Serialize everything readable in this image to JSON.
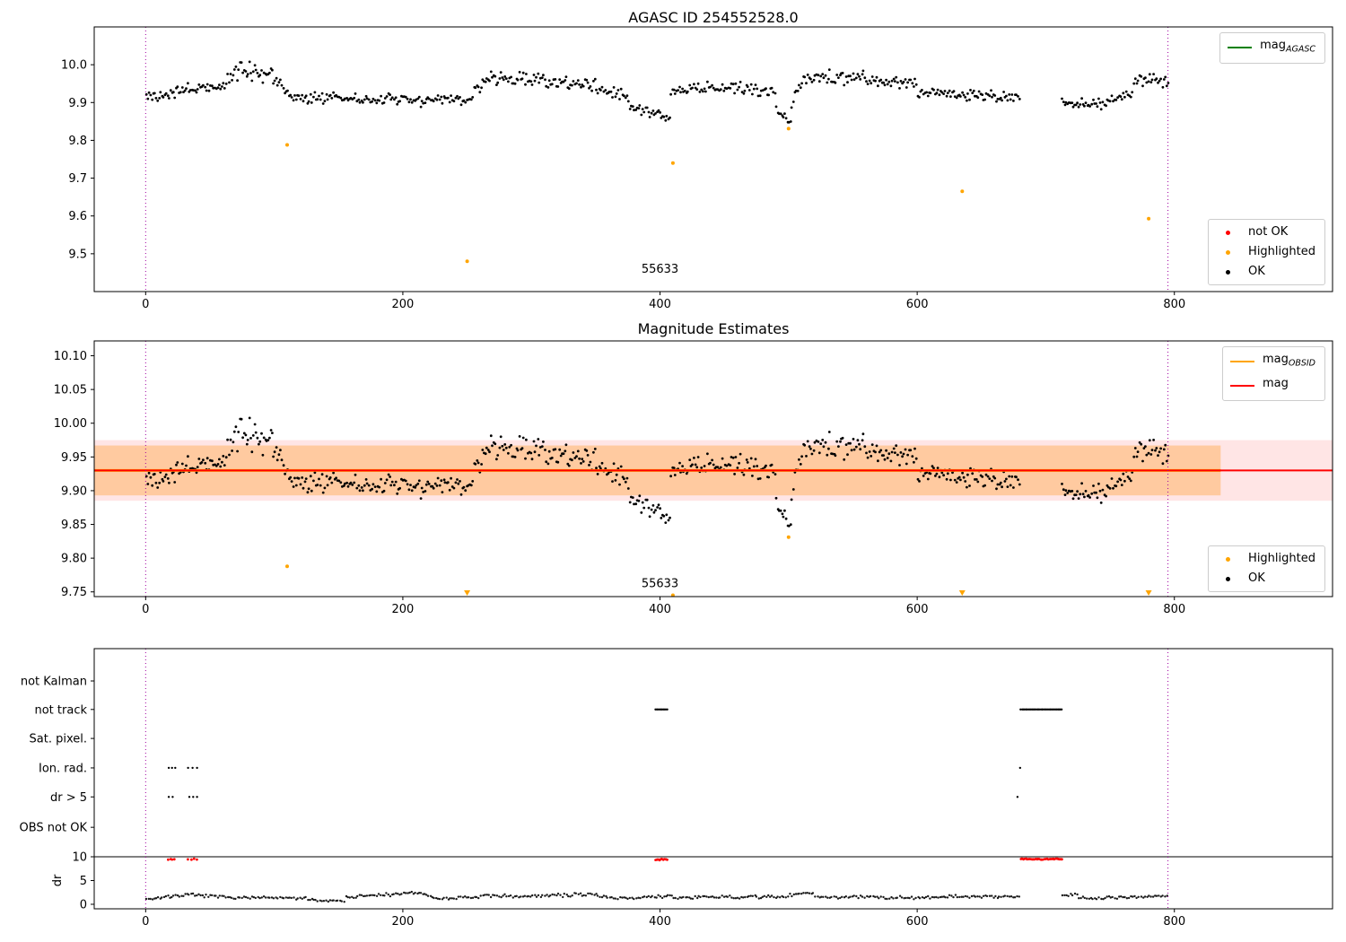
{
  "colors": {
    "ok": "#000000",
    "highlighted": "#ffa500",
    "not_ok": "#ff0000",
    "mag_line": "#ff0000",
    "mag_obsid_line": "#ffa500",
    "mag_agasc_line": "#008000",
    "obsid_boundary": "#a000a0",
    "band_inner": "rgba(255,140,0,0.30)",
    "band_outer": "rgba(255,0,0,0.10)"
  },
  "legends": {
    "top_mag": {
      "items": [
        {
          "type": "line",
          "color": "#008000",
          "main": "mag",
          "sub": "AGASC"
        }
      ]
    },
    "top_status": {
      "items": [
        {
          "type": "dot",
          "color": "#ff0000",
          "label": "not OK"
        },
        {
          "type": "dot",
          "color": "#ffa500",
          "label": "Highlighted"
        },
        {
          "type": "dot",
          "color": "#000000",
          "label": "OK"
        }
      ]
    },
    "mid_mag": {
      "items": [
        {
          "type": "line",
          "color": "#ffa500",
          "main": "mag",
          "sub": "OBSID"
        },
        {
          "type": "line",
          "color": "#ff0000",
          "main": "mag",
          "sub": ""
        }
      ]
    },
    "mid_status": {
      "items": [
        {
          "type": "dot",
          "color": "#ffa500",
          "label": "Highlighted"
        },
        {
          "type": "dot",
          "color": "#000000",
          "label": "OK"
        }
      ]
    }
  },
  "chart_data": [
    {
      "id": "top",
      "type": "scatter",
      "title": "AGASC ID 254552528.0",
      "xlim": [
        -40,
        923
      ],
      "ylim": [
        9.4,
        10.1
      ],
      "xticks": [
        {
          "v": 0,
          "label": "0"
        },
        {
          "v": 200,
          "label": "200"
        },
        {
          "v": 400,
          "label": "400"
        },
        {
          "v": 600,
          "label": "600"
        },
        {
          "v": 800,
          "label": "800"
        }
      ],
      "yticks": [
        {
          "v": 9.5,
          "label": "9.5"
        },
        {
          "v": 9.6,
          "label": "9.6"
        },
        {
          "v": 9.7,
          "label": "9.7"
        },
        {
          "v": 9.8,
          "label": "9.8"
        },
        {
          "v": 9.9,
          "label": "9.9"
        },
        {
          "v": 10.0,
          "label": "10.0"
        }
      ],
      "vlines": [
        {
          "x": 0,
          "color": "#a000a0"
        },
        {
          "x": 795,
          "color": "#a000a0"
        }
      ],
      "annotations": [
        {
          "x": 400,
          "y": 9.45,
          "text": "55633"
        }
      ],
      "series": [
        {
          "name": "ok",
          "color": "#000000",
          "r": 1.4,
          "seed": 42,
          "gen": [
            [
              0,
              20,
              18,
              9.915,
              9.925,
              0.02
            ],
            [
              20,
              60,
              36,
              9.925,
              9.945,
              0.022
            ],
            [
              60,
              75,
              14,
              9.95,
              9.99,
              0.025
            ],
            [
              75,
              100,
              24,
              9.985,
              9.975,
              0.03
            ],
            [
              100,
              112,
              11,
              9.96,
              9.915,
              0.02
            ],
            [
              112,
              150,
              34,
              9.91,
              9.915,
              0.018
            ],
            [
              150,
              210,
              52,
              9.91,
              9.905,
              0.018
            ],
            [
              210,
              255,
              40,
              9.905,
              9.91,
              0.018
            ],
            [
              255,
              268,
              12,
              9.93,
              9.965,
              0.02
            ],
            [
              268,
              310,
              38,
              9.965,
              9.96,
              0.022
            ],
            [
              310,
              350,
              36,
              9.955,
              9.945,
              0.025
            ],
            [
              350,
              375,
              22,
              9.93,
              9.915,
              0.02
            ],
            [
              375,
              395,
              18,
              9.895,
              9.865,
              0.018
            ],
            [
              395,
              408,
              12,
              9.87,
              9.86,
              0.015
            ],
            [
              408,
              420,
              11,
              9.925,
              9.935,
              0.015
            ],
            [
              420,
              490,
              60,
              9.94,
              9.935,
              0.02
            ],
            [
              490,
              502,
              11,
              9.88,
              9.845,
              0.018
            ],
            [
              502,
              512,
              9,
              9.9,
              9.96,
              0.02
            ],
            [
              512,
              560,
              42,
              9.97,
              9.965,
              0.025
            ],
            [
              560,
              600,
              36,
              9.96,
              9.95,
              0.022
            ],
            [
              600,
              640,
              36,
              9.93,
              9.92,
              0.02
            ],
            [
              640,
              680,
              36,
              9.92,
              9.915,
              0.018
            ],
            [
              712,
              745,
              30,
              9.9,
              9.895,
              0.015
            ],
            [
              745,
              768,
              20,
              9.9,
              9.92,
              0.018
            ],
            [
              768,
              788,
              18,
              9.95,
              9.97,
              0.02
            ],
            [
              788,
              796,
              7,
              9.96,
              9.95,
              0.018
            ]
          ]
        },
        {
          "name": "highlighted",
          "color": "#ffa500",
          "r": 2,
          "points": [
            [
              110,
              9.788
            ],
            [
              250,
              9.48
            ],
            [
              410,
              9.74
            ],
            [
              500,
              9.831
            ],
            [
              635,
              9.665
            ],
            [
              780,
              9.593
            ]
          ]
        }
      ]
    },
    {
      "id": "mid",
      "type": "scatter",
      "title": "Magnitude Estimates",
      "xlim": [
        -40,
        923
      ],
      "ylim": [
        9.743,
        10.122
      ],
      "xticks": [
        {
          "v": 0,
          "label": "0"
        },
        {
          "v": 200,
          "label": "200"
        },
        {
          "v": 400,
          "label": "400"
        },
        {
          "v": 600,
          "label": "600"
        },
        {
          "v": 800,
          "label": "800"
        }
      ],
      "yticks": [
        {
          "v": 9.75,
          "label": "9.75"
        },
        {
          "v": 9.8,
          "label": "9.80"
        },
        {
          "v": 9.85,
          "label": "9.85"
        },
        {
          "v": 9.9,
          "label": "9.90"
        },
        {
          "v": 9.95,
          "label": "9.95"
        },
        {
          "v": 10.0,
          "label": "10.00"
        },
        {
          "v": 10.05,
          "label": "10.05"
        },
        {
          "v": 10.1,
          "label": "10.10"
        }
      ],
      "vlines": [
        {
          "x": 0,
          "color": "#a000a0"
        },
        {
          "x": 795,
          "color": "#a000a0"
        }
      ],
      "bands": [
        {
          "x0": -40,
          "x1": 923,
          "y0": 9.885,
          "y1": 9.975,
          "color": "rgba(255,0,0,0.10)"
        },
        {
          "x0": -40,
          "x1": 836,
          "y0": 9.893,
          "y1": 9.967,
          "color": "rgba(255,140,0,0.30)"
        }
      ],
      "hlines": [
        {
          "y": 9.93,
          "x0": -40,
          "x1": 836,
          "color": "#ffa500",
          "width": 3
        },
        {
          "y": 9.93,
          "color": "#ff0000",
          "width": 2
        }
      ],
      "annotations": [
        {
          "x": 400,
          "y": 9.757,
          "text": "55633"
        }
      ],
      "series": [
        {
          "name": "ok",
          "color": "#000000",
          "r": 1.4,
          "seed": 42,
          "gen": [
            [
              0,
              20,
              18,
              9.915,
              9.925,
              0.02
            ],
            [
              20,
              60,
              36,
              9.925,
              9.945,
              0.022
            ],
            [
              60,
              75,
              14,
              9.95,
              9.99,
              0.025
            ],
            [
              75,
              100,
              24,
              9.985,
              9.975,
              0.03
            ],
            [
              100,
              112,
              11,
              9.96,
              9.915,
              0.02
            ],
            [
              112,
              150,
              34,
              9.91,
              9.915,
              0.018
            ],
            [
              150,
              210,
              52,
              9.91,
              9.905,
              0.018
            ],
            [
              210,
              255,
              40,
              9.905,
              9.91,
              0.018
            ],
            [
              255,
              268,
              12,
              9.93,
              9.965,
              0.02
            ],
            [
              268,
              310,
              38,
              9.965,
              9.96,
              0.022
            ],
            [
              310,
              350,
              36,
              9.955,
              9.945,
              0.025
            ],
            [
              350,
              375,
              22,
              9.93,
              9.915,
              0.02
            ],
            [
              375,
              395,
              18,
              9.895,
              9.865,
              0.018
            ],
            [
              395,
              408,
              12,
              9.87,
              9.86,
              0.015
            ],
            [
              408,
              420,
              11,
              9.925,
              9.935,
              0.015
            ],
            [
              420,
              490,
              60,
              9.94,
              9.935,
              0.02
            ],
            [
              490,
              502,
              11,
              9.88,
              9.845,
              0.018
            ],
            [
              502,
              512,
              9,
              9.9,
              9.96,
              0.02
            ],
            [
              512,
              560,
              42,
              9.97,
              9.965,
              0.025
            ],
            [
              560,
              600,
              36,
              9.96,
              9.95,
              0.022
            ],
            [
              600,
              640,
              36,
              9.93,
              9.92,
              0.02
            ],
            [
              640,
              680,
              36,
              9.92,
              9.915,
              0.018
            ],
            [
              712,
              745,
              30,
              9.9,
              9.895,
              0.015
            ],
            [
              745,
              768,
              20,
              9.9,
              9.92,
              0.018
            ],
            [
              768,
              788,
              18,
              9.95,
              9.97,
              0.02
            ],
            [
              788,
              796,
              7,
              9.96,
              9.95,
              0.018
            ]
          ]
        },
        {
          "name": "highlighted",
          "color": "#ffa500",
          "r": 2,
          "points": [
            [
              110,
              9.788
            ],
            [
              410,
              9.745
            ],
            [
              500,
              9.831
            ]
          ],
          "clipped": [
            250,
            635,
            780
          ]
        }
      ]
    },
    {
      "id": "bot",
      "type": "scatter",
      "title": "",
      "xlim": [
        -40,
        923
      ],
      "ylim": [
        -0.95,
        53.8
      ],
      "xticks": [
        {
          "v": 0,
          "label": "0"
        },
        {
          "v": 200,
          "label": "200"
        },
        {
          "v": 400,
          "label": "400"
        },
        {
          "v": 600,
          "label": "600"
        },
        {
          "v": 800,
          "label": "800"
        }
      ],
      "yticks": [
        {
          "v": 0,
          "label": "0"
        },
        {
          "v": 5,
          "label": "5"
        },
        {
          "v": 10,
          "label": "10"
        },
        {
          "v": 16.2,
          "label": "OBS not OK"
        },
        {
          "v": 22.6,
          "label": "dr > 5"
        },
        {
          "v": 28.7,
          "label": "Ion. rad."
        },
        {
          "v": 34.9,
          "label": "Sat. pixel."
        },
        {
          "v": 41.0,
          "label": "not track"
        },
        {
          "v": 47.0,
          "label": "not Kalman"
        }
      ],
      "ylabel": {
        "text": "dr",
        "at": 5
      },
      "vlines": [
        {
          "x": 0,
          "color": "#a000a0"
        },
        {
          "x": 795,
          "color": "#a000a0"
        }
      ],
      "hlines": [
        {
          "y": 10,
          "color": "#000000",
          "width": 1
        }
      ],
      "series": [
        {
          "name": "dr-ok",
          "color": "#1a1a1a",
          "r": 1.2,
          "seed": 7,
          "gen": [
            [
              0,
              30,
              20,
              1.1,
              2.0,
              0.4
            ],
            [
              30,
              60,
              20,
              2.0,
              1.5,
              0.4
            ],
            [
              60,
              130,
              45,
              1.5,
              1.2,
              0.35
            ],
            [
              130,
              155,
              16,
              0.8,
              0.8,
              0.3
            ],
            [
              155,
              215,
              40,
              1.5,
              2.4,
              0.45
            ],
            [
              215,
              225,
              7,
              2.4,
              1.2,
              0.3
            ],
            [
              225,
              260,
              22,
              1.2,
              1.5,
              0.35
            ],
            [
              260,
              345,
              55,
              1.6,
              2.0,
              0.45
            ],
            [
              345,
              360,
              10,
              2.2,
              1.5,
              0.35
            ],
            [
              360,
              395,
              22,
              1.3,
              1.5,
              0.35
            ],
            [
              395,
              410,
              10,
              1.5,
              1.8,
              0.4
            ],
            [
              410,
              500,
              60,
              1.4,
              1.6,
              0.45
            ],
            [
              500,
              520,
              13,
              2.0,
              2.4,
              0.4
            ],
            [
              520,
              600,
              50,
              1.6,
              1.4,
              0.4
            ],
            [
              600,
              680,
              52,
              1.5,
              1.7,
              0.45
            ],
            [
              712,
              725,
              8,
              1.8,
              2.2,
              0.35
            ],
            [
              725,
              795,
              45,
              1.3,
              1.7,
              0.4
            ]
          ]
        },
        {
          "name": "dr-not-ok",
          "color": "#ff0000",
          "r": 1.4,
          "seed": 9,
          "gen": [
            [
              17,
              23,
              4,
              9.4,
              9.4,
              0.25
            ],
            [
              32,
              41,
              4,
              9.4,
              9.4,
              0.25
            ],
            [
              396,
              406,
              10,
              9.45,
              9.45,
              0.2
            ],
            [
              680,
              713,
              34,
              9.5,
              9.5,
              0.15
            ]
          ]
        },
        {
          "name": "flag-not-track",
          "color": "#000000",
          "r": 1.2,
          "seed": 11,
          "gen": [
            [
              396,
              406,
              10,
              41,
              41,
              0
            ],
            [
              680,
              713,
              34,
              41,
              41,
              0
            ]
          ]
        },
        {
          "name": "flag-ion-rad",
          "color": "#000000",
          "r": 1.2,
          "points": [
            [
              18,
              28.7
            ],
            [
              20.5,
              28.7
            ],
            [
              23,
              28.7
            ],
            [
              33,
              28.7
            ],
            [
              36.5,
              28.7
            ],
            [
              40,
              28.7
            ],
            [
              680,
              28.7
            ]
          ]
        },
        {
          "name": "flag-dr5",
          "color": "#000000",
          "r": 1.2,
          "points": [
            [
              18,
              22.6
            ],
            [
              21,
              22.6
            ],
            [
              34,
              22.6
            ],
            [
              37,
              22.6
            ],
            [
              40,
              22.6
            ],
            [
              678,
              22.6
            ]
          ]
        }
      ]
    }
  ]
}
